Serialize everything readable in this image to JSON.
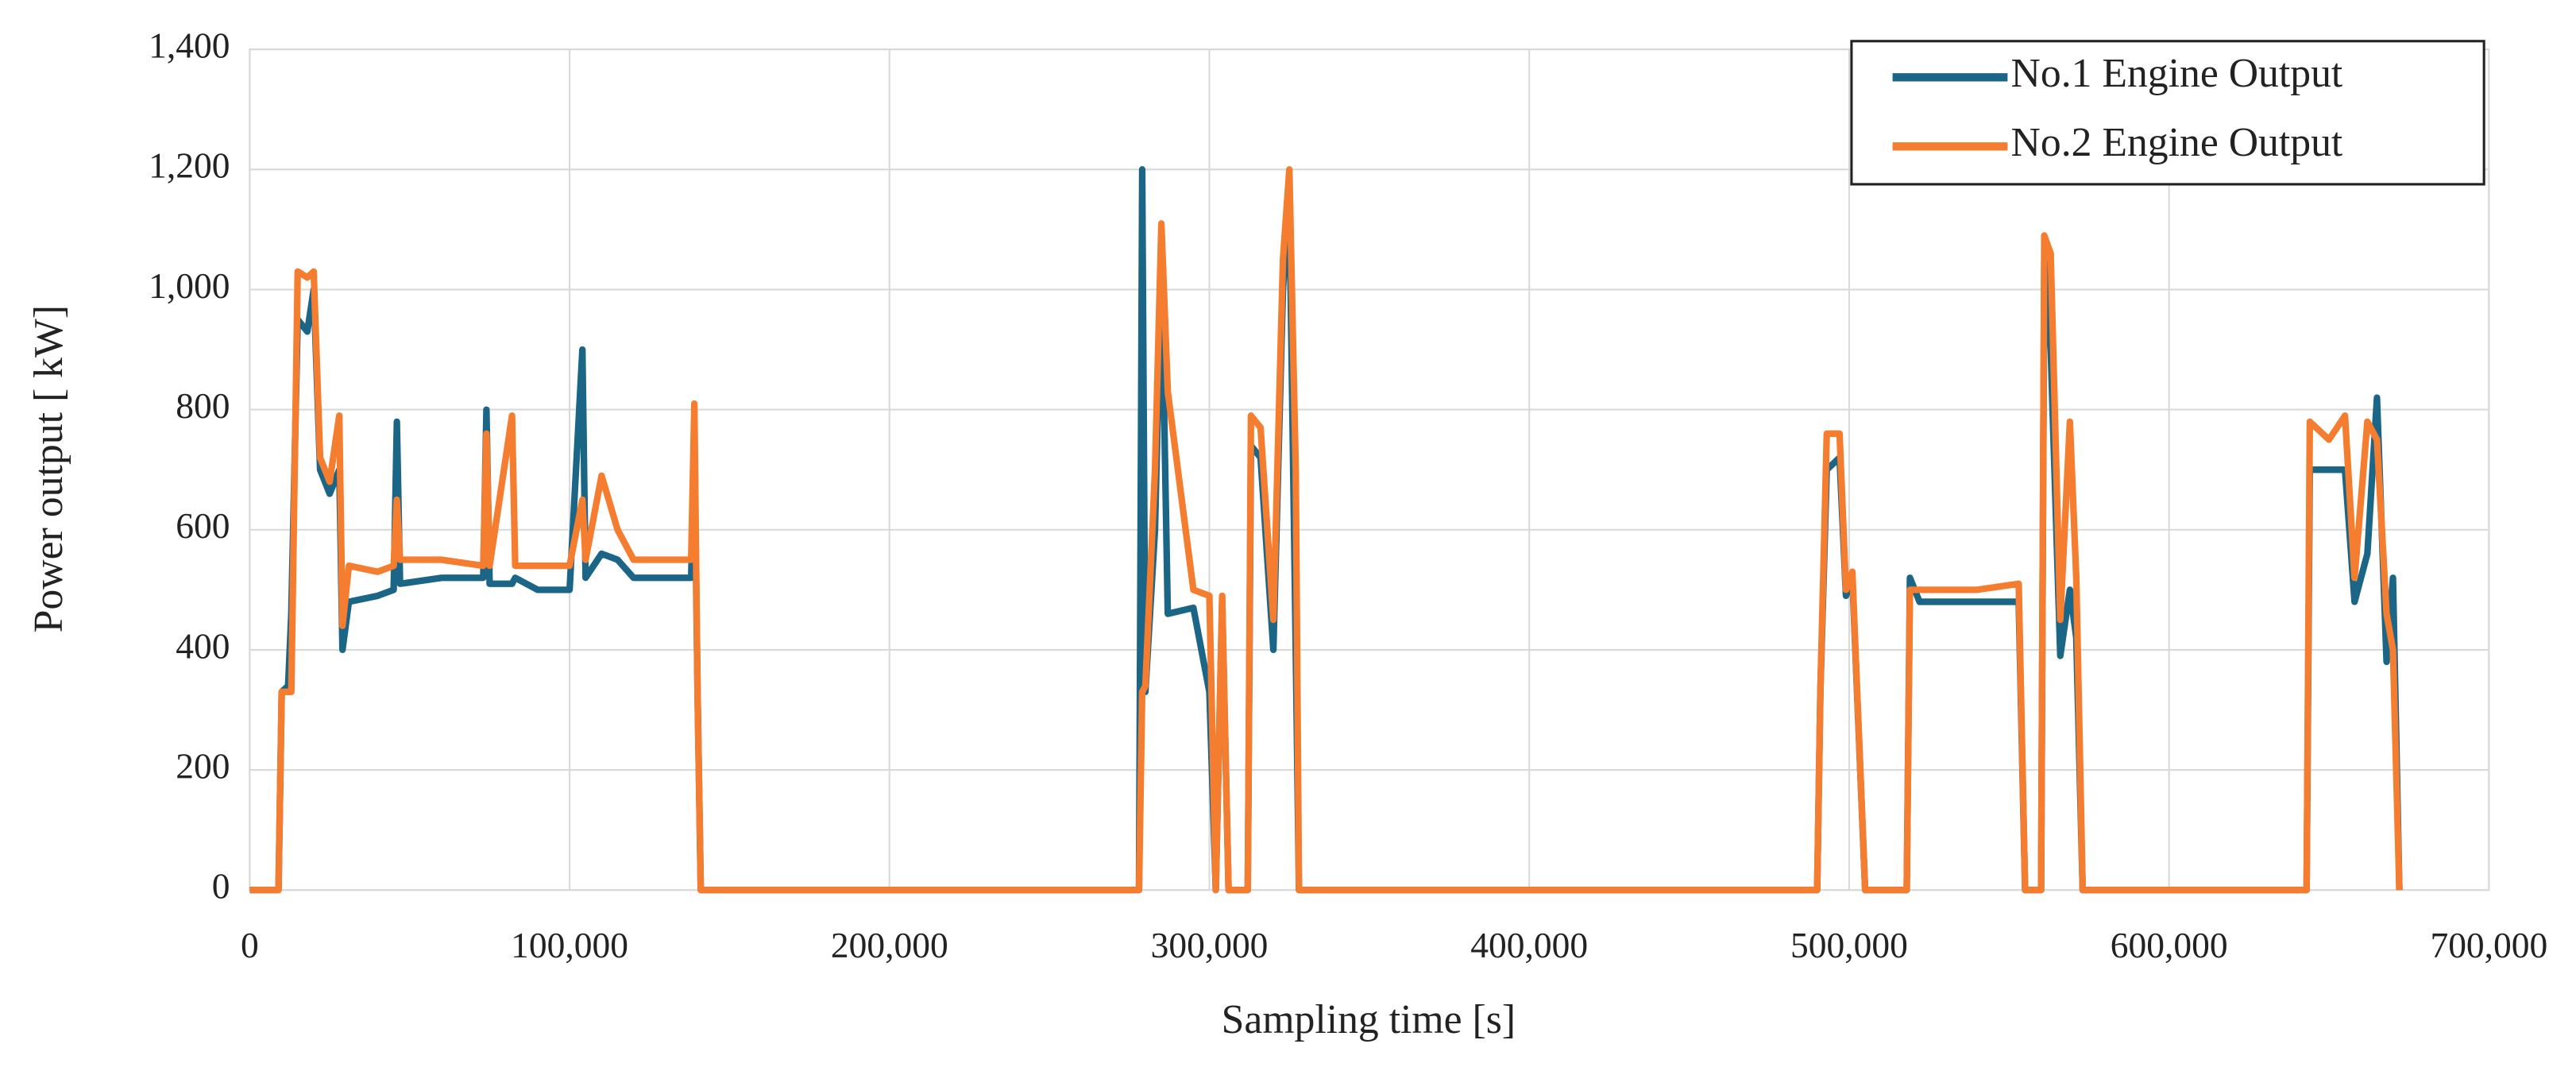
{
  "chart_data": {
    "type": "line",
    "xlabel": "Sampling time [s]",
    "ylabel": "Power output [ kW]",
    "x": [
      0,
      9000,
      10000,
      12000,
      13000,
      15000,
      18000,
      20000,
      22000,
      25000,
      28000,
      29000,
      31000,
      40000,
      45000,
      46000,
      47000,
      60000,
      73000,
      74000,
      75000,
      82000,
      83000,
      90000,
      100000,
      104000,
      105000,
      110000,
      115000,
      120000,
      130000,
      138000,
      139000,
      140000,
      141000,
      278000,
      279000,
      280000,
      283000,
      285000,
      287000,
      295000,
      300000,
      302000,
      304000,
      306000,
      312000,
      313000,
      316000,
      320000,
      323000,
      325000,
      327000,
      328000,
      490000,
      491000,
      493000,
      497000,
      499000,
      501000,
      505000,
      518000,
      519000,
      522000,
      540000,
      553000,
      555000,
      560000,
      561000,
      563000,
      566000,
      569000,
      571000,
      573000,
      643000,
      644000,
      650000,
      655000,
      658000,
      662000,
      665000,
      668000,
      670000,
      672000
    ],
    "series": [
      {
        "name": "No.1 Engine Output",
        "color": "#1b6587",
        "values": [
          0,
          0,
          330,
          340,
          460,
          950,
          930,
          1000,
          700,
          660,
          700,
          400,
          480,
          490,
          500,
          780,
          510,
          520,
          520,
          800,
          510,
          510,
          520,
          500,
          500,
          900,
          520,
          560,
          550,
          520,
          520,
          520,
          740,
          330,
          0,
          0,
          1200,
          330,
          600,
          1050,
          460,
          470,
          330,
          0,
          480,
          0,
          0,
          740,
          720,
          400,
          1000,
          1150,
          400,
          0,
          0,
          330,
          700,
          720,
          490,
          520,
          0,
          0,
          520,
          480,
          480,
          480,
          0,
          0,
          1050,
          900,
          390,
          500,
          420,
          0,
          0,
          700,
          700,
          700,
          480,
          560,
          820,
          380,
          520,
          0
        ]
      },
      {
        "name": "No.2 Engine Output",
        "color": "#f47d30",
        "values": [
          0,
          0,
          330,
          330,
          330,
          1030,
          1020,
          1030,
          720,
          680,
          790,
          440,
          540,
          530,
          540,
          650,
          550,
          550,
          540,
          760,
          540,
          790,
          540,
          540,
          540,
          650,
          550,
          690,
          600,
          550,
          550,
          550,
          810,
          330,
          0,
          0,
          330,
          340,
          700,
          1110,
          830,
          500,
          490,
          0,
          490,
          0,
          0,
          790,
          770,
          450,
          1050,
          1200,
          700,
          0,
          0,
          330,
          760,
          760,
          500,
          530,
          0,
          0,
          500,
          500,
          500,
          510,
          0,
          0,
          1090,
          1060,
          450,
          780,
          520,
          0,
          0,
          780,
          750,
          790,
          520,
          780,
          750,
          460,
          400,
          0
        ]
      }
    ],
    "xlim": [
      0,
      700000
    ],
    "xticks": [
      0,
      {
        "value": 100000,
        "label": "100,000"
      },
      {
        "value": 200000,
        "label": "200,000"
      },
      {
        "value": 300000,
        "label": "300,000"
      },
      {
        "value": 400000,
        "label": "400,000"
      },
      {
        "value": 500000,
        "label": "500,000"
      },
      {
        "value": 600000,
        "label": "600,000"
      },
      {
        "value": 700000,
        "label": "700,000"
      }
    ],
    "ylim": [
      0,
      1400
    ],
    "yticks": [
      0,
      200,
      400,
      600,
      800,
      {
        "value": 1000,
        "label": "1,000"
      },
      {
        "value": 1200,
        "label": "1,200"
      },
      {
        "value": 1400,
        "label": "1,400"
      }
    ],
    "grid": true,
    "legend": "upper right"
  }
}
